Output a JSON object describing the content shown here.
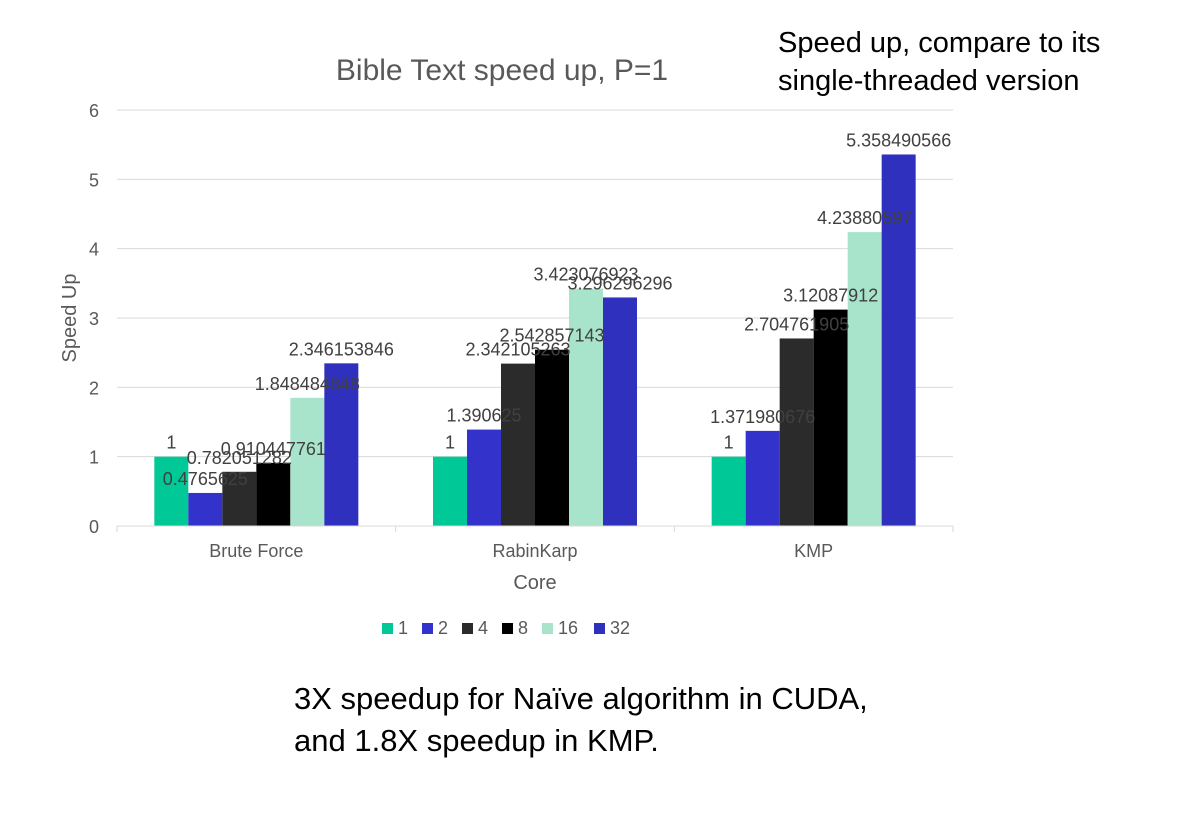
{
  "notes": {
    "top_line1": "Speed up, compare to its",
    "top_line2": "single-threaded version",
    "bottom_line1": "3X speedup for Naïve algorithm in CUDA,",
    "bottom_line2": "and 1.8X speedup in KMP."
  },
  "chart_data": {
    "type": "bar",
    "title": "Bible Text speed up, P=1",
    "xlabel": "Core",
    "ylabel": "Speed Up",
    "categories": [
      "Brute Force",
      "RabinKarp",
      "KMP"
    ],
    "ylim": [
      0,
      6
    ],
    "yticks": [
      0,
      1,
      2,
      3,
      4,
      5,
      6
    ],
    "grid": true,
    "legend_position": "bottom",
    "series": [
      {
        "name": "1",
        "color": "#00C896",
        "values": [
          1,
          1,
          1
        ],
        "labels": [
          "1",
          "1",
          "1"
        ]
      },
      {
        "name": "2",
        "color": "#3333CC",
        "values": [
          0.4765625,
          1.390625,
          1.371980676
        ],
        "labels": [
          "0.4765625",
          "1.390625",
          "1.371980676"
        ]
      },
      {
        "name": "4",
        "color": "#2B2B2B",
        "values": [
          0.782051282,
          2.342105263,
          2.704761905
        ],
        "labels": [
          "0.782051282",
          "2.342105263",
          "2.704761905"
        ]
      },
      {
        "name": "8",
        "color": "#000000",
        "values": [
          0.910447761,
          2.542857143,
          3.12087912
        ],
        "labels": [
          "0.910447761",
          "2.542857143",
          "3.12087912"
        ]
      },
      {
        "name": "16",
        "color": "#A8E4CC",
        "values": [
          1.848484848,
          3.423076923,
          4.23880597
        ],
        "labels": [
          "1.848484848",
          "3.423076923",
          "4.23880597"
        ]
      },
      {
        "name": "32",
        "color": "#3030BE",
        "values": [
          2.346153846,
          3.296296296,
          5.358490566
        ],
        "labels": [
          "2.346153846",
          "3.296296296",
          "5.358490566"
        ]
      }
    ]
  }
}
